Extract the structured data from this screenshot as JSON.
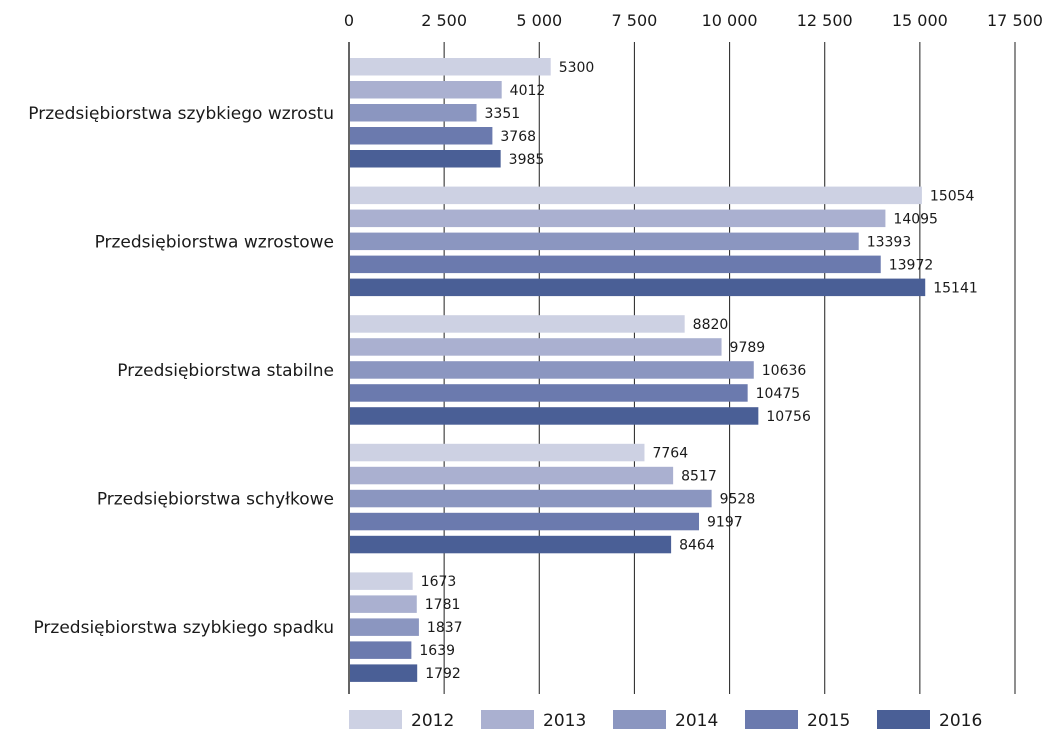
{
  "chart_data": {
    "type": "bar",
    "orientation": "horizontal",
    "categories": [
      "Przedsiębiorstwa szybkiego wzrostu",
      "Przedsiębiorstwa wzrostowe",
      "Przedsiębiorstwa stabilne",
      "Przedsiębiorstwa schyłkowe",
      "Przedsiębiorstwa szybkiego spadku"
    ],
    "series": [
      {
        "name": "2012",
        "color": "#cdd1e3",
        "values": [
          5300,
          15054,
          8820,
          7764,
          1673
        ]
      },
      {
        "name": "2013",
        "color": "#aab0d0",
        "values": [
          4012,
          14095,
          9789,
          8517,
          1781
        ]
      },
      {
        "name": "2014",
        "color": "#8b96c0",
        "values": [
          3351,
          13393,
          10636,
          9528,
          1837
        ]
      },
      {
        "name": "2015",
        "color": "#6b7aae",
        "values": [
          3768,
          13972,
          10475,
          9197,
          1639
        ]
      },
      {
        "name": "2016",
        "color": "#4a5f96",
        "values": [
          3985,
          15141,
          10756,
          8464,
          1792
        ]
      }
    ],
    "xlim": [
      0,
      17500
    ],
    "xticks": [
      0,
      2500,
      5000,
      7500,
      10000,
      12500,
      15000,
      17500
    ],
    "xtick_labels": [
      "0",
      "2 500",
      "5 000",
      "7 500",
      "10 000",
      "12 500",
      "15 000",
      "17 500"
    ],
    "axis_position": "top",
    "grid": true,
    "legend_position": "bottom",
    "title": "",
    "xlabel": "",
    "ylabel": ""
  }
}
